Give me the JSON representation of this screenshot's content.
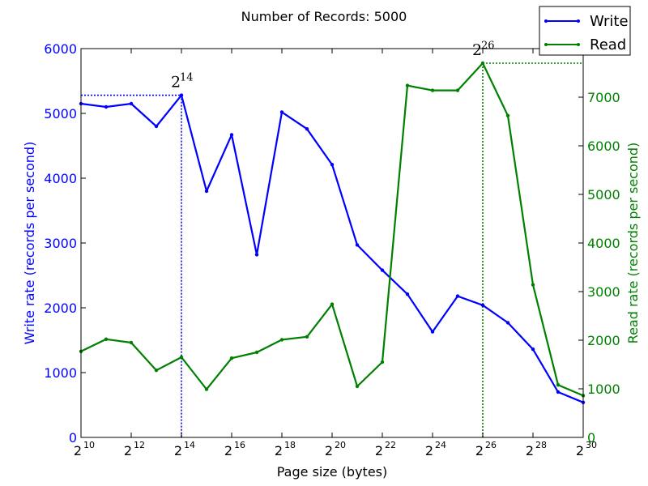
{
  "chart_data": {
    "type": "line",
    "title": "Number of Records: 5000",
    "xlabel": "Page size (bytes)",
    "ylabel_left": "Write rate (records per second)",
    "ylabel_right": "Read rate (records per second)",
    "x_scale": "log2",
    "x_exponents": [
      10,
      11,
      12,
      13,
      14,
      15,
      16,
      17,
      18,
      19,
      20,
      21,
      22,
      23,
      24,
      25,
      26,
      27,
      28,
      29,
      30
    ],
    "x_tick_exponents": [
      10,
      12,
      14,
      16,
      18,
      20,
      22,
      24,
      26,
      28,
      30
    ],
    "x_tick_base": "2",
    "ylim_left": [
      0,
      6000
    ],
    "ylim_right": [
      0,
      8000
    ],
    "yticks_left": [
      0,
      1000,
      2000,
      3000,
      4000,
      5000,
      6000
    ],
    "yticks_right": [
      0,
      1000,
      2000,
      3000,
      4000,
      5000,
      6000,
      7000
    ],
    "grid": false,
    "legend_position": "top-right",
    "series": [
      {
        "name": "Write",
        "axis": "left",
        "color": "#0000ff",
        "values": [
          5150,
          5100,
          5150,
          4800,
          5280,
          3800,
          4670,
          2820,
          5020,
          4760,
          4210,
          2970,
          2580,
          2210,
          1630,
          2180,
          2040,
          1770,
          1360,
          700,
          540
        ]
      },
      {
        "name": "Read",
        "axis": "right",
        "color": "#008000",
        "values": [
          1770,
          2020,
          1950,
          1380,
          1650,
          990,
          1630,
          1750,
          2010,
          2070,
          2740,
          1050,
          1550,
          7240,
          7140,
          7140,
          7700,
          6620,
          3140,
          1080,
          860
        ]
      }
    ],
    "annotations": [
      {
        "series": "Write",
        "exponent": 14,
        "base": "2",
        "exp_label": "14",
        "value": 5280,
        "color": "#0000ff"
      },
      {
        "series": "Read",
        "exponent": 26,
        "base": "2",
        "exp_label": "26",
        "value": 7700,
        "color": "#008000"
      }
    ]
  }
}
